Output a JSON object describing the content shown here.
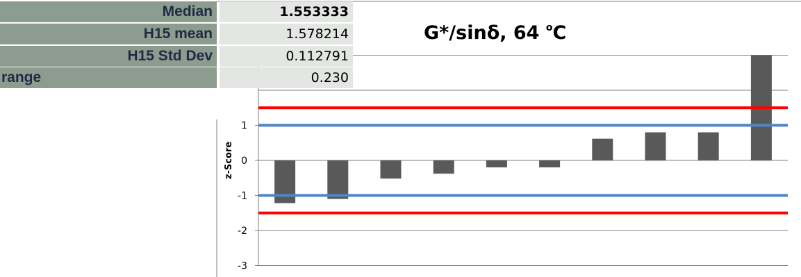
{
  "stats": [
    {
      "label": "Median",
      "value": "1.553333",
      "bold": true
    },
    {
      "label": "H15 mean",
      "value": "1.578214",
      "bold": false
    },
    {
      "label": "H15 Std Dev",
      "value": "0.112791",
      "bold": false
    },
    {
      "label": "range",
      "value": "0.230",
      "bold": false
    }
  ],
  "chart_data": {
    "type": "bar",
    "title_main": "G*/sinδ, 64 ",
    "title_sup": "o",
    "title_tail": "C",
    "ylabel": "z-Score",
    "ylim": [
      -3,
      3
    ],
    "yticks": [
      "1",
      "0",
      "-1",
      "-2",
      "-3"
    ],
    "values": [
      -1.22,
      -1.1,
      -0.52,
      -0.38,
      -0.2,
      -0.2,
      0.62,
      0.8,
      0.8,
      3.0
    ],
    "reference_lines": [
      {
        "value": 1.5,
        "color": "#ff0000"
      },
      {
        "value": 1.0,
        "color": "#4f86c6"
      },
      {
        "value": -1.0,
        "color": "#4f86c6"
      },
      {
        "value": -1.5,
        "color": "#ff0000"
      }
    ],
    "grid": true,
    "bar_color": "#595959"
  }
}
